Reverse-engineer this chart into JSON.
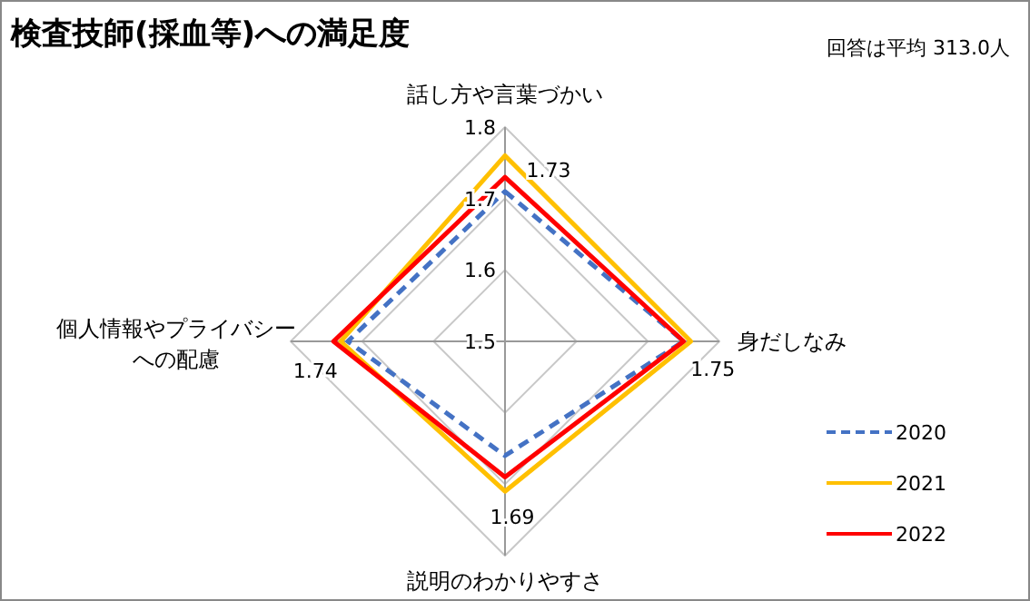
{
  "chart_data": {
    "type": "radar",
    "title": "検査技師(採血等)への満足度",
    "subtitle": "回答は平均 313.0人",
    "categories": [
      "話し方や言葉づかい",
      "身だしなみ",
      "説明のわかりやすさ",
      "個人情報やプライバシーへの配慮"
    ],
    "ylim": [
      1.5,
      1.8
    ],
    "yticks": [
      1.5,
      1.6,
      1.7,
      1.8
    ],
    "grid": true,
    "legend": "right",
    "marker": "none",
    "series": [
      {
        "name": "2020",
        "color": "#4472c4",
        "line_style": "dashed",
        "values": [
          1.71,
          1.75,
          1.66,
          1.72
        ]
      },
      {
        "name": "2021",
        "color": "#ffc000",
        "line_style": "solid",
        "values": [
          1.76,
          1.76,
          1.71,
          1.73
        ]
      },
      {
        "name": "2022",
        "color": "#ff0000",
        "line_style": "solid",
        "values": [
          1.73,
          1.75,
          1.69,
          1.74
        ],
        "value_labels": [
          "1.73",
          "1.75",
          "1.69",
          "1.74"
        ]
      }
    ]
  }
}
